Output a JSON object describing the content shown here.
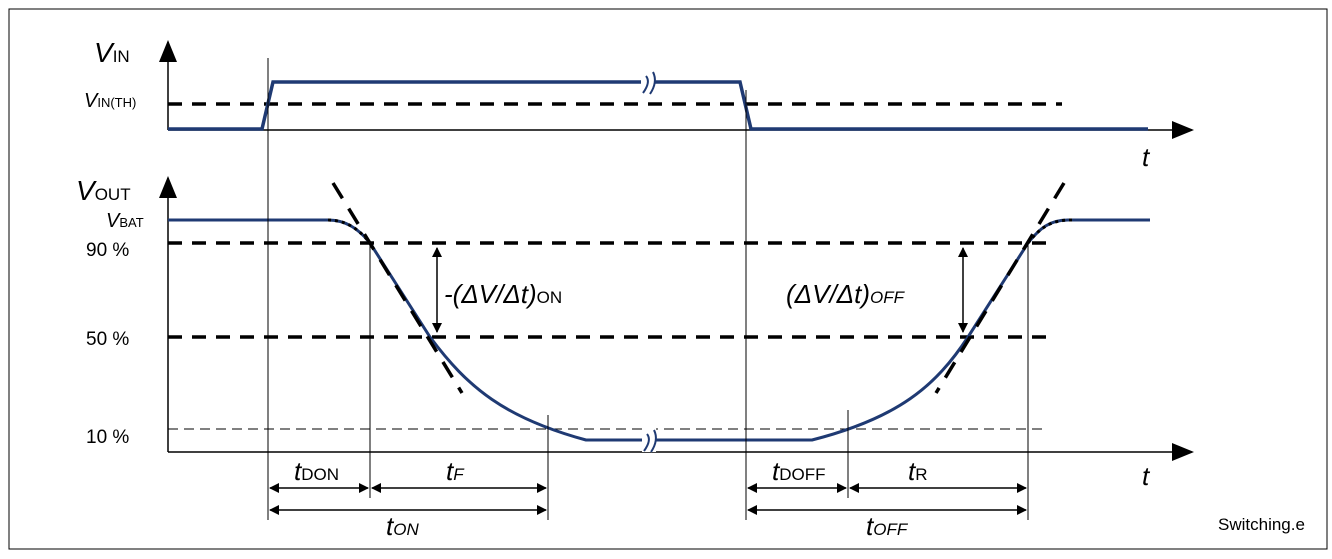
{
  "diagram": {
    "vin_axis": {
      "symbol": "V",
      "subscript": "IN"
    },
    "vin_threshold": {
      "symbol": "V",
      "subscript": "IN(TH)"
    },
    "vout_axis": {
      "symbol": "V",
      "subscript": "OUT"
    },
    "vbat_level": {
      "symbol": "V",
      "subscript": "BAT"
    },
    "level_labels": {
      "p90": "90 %",
      "p50": "50 %",
      "p10": "10 %"
    },
    "time_label": "t",
    "slope_on": {
      "prefix": "-(",
      "body": "ΔV/Δt)",
      "subscript": "ON"
    },
    "slope_off": {
      "body": "(ΔV/Δt)",
      "subscript": "OFF"
    },
    "intervals": {
      "t_don": {
        "symbol": "t",
        "subscript": "DON"
      },
      "t_f": {
        "symbol": "t",
        "subscript": "F"
      },
      "t_on": {
        "symbol": "t",
        "subscript": "ON"
      },
      "t_doff": {
        "symbol": "t",
        "subscript": "DOFF"
      },
      "t_r": {
        "symbol": "t",
        "subscript": "R"
      },
      "t_off": {
        "symbol": "t",
        "subscript": "OFF"
      }
    },
    "filename_label": "Switching.e",
    "colors": {
      "signal": "#1f3a73",
      "lines": "#000000",
      "background": "#ffffff"
    }
  }
}
